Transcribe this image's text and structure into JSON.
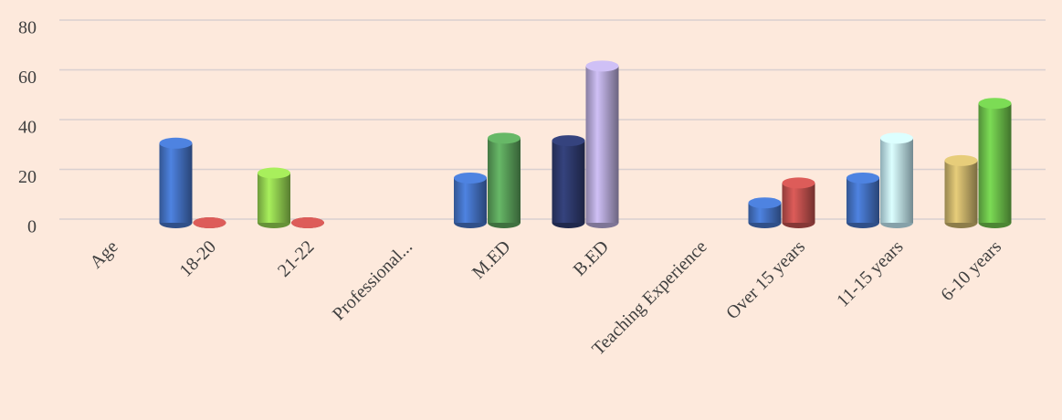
{
  "chart_data": {
    "type": "bar",
    "categories": [
      "Age",
      "18-20",
      "21-22",
      "Professional...",
      "M.ED",
      "B.ED",
      "Teaching Experience",
      "Over 15 years",
      "11-15 years",
      "6-10 years"
    ],
    "series": [
      {
        "values": [
          null,
          32,
          20,
          null,
          18,
          33,
          null,
          8,
          18,
          25
        ],
        "colors": [
          null,
          "#4472c4",
          "#92d050",
          null,
          "#4472c4",
          "#2e3a6e",
          null,
          "#4472c4",
          "#4472c4",
          "#c9b26a"
        ]
      },
      {
        "values": [
          null,
          0,
          0,
          null,
          34,
          63,
          null,
          16,
          34,
          48
        ],
        "colors": [
          null,
          "#c0504d",
          "#c0504d",
          null,
          "#5aa05a",
          "#b4a7d6",
          null,
          "#c0504d",
          "#bfe6f2",
          "#6cbf4a"
        ]
      }
    ],
    "ylim": [
      0,
      80
    ],
    "yticks": [
      0,
      20,
      40,
      60,
      80
    ],
    "grid": true
  }
}
